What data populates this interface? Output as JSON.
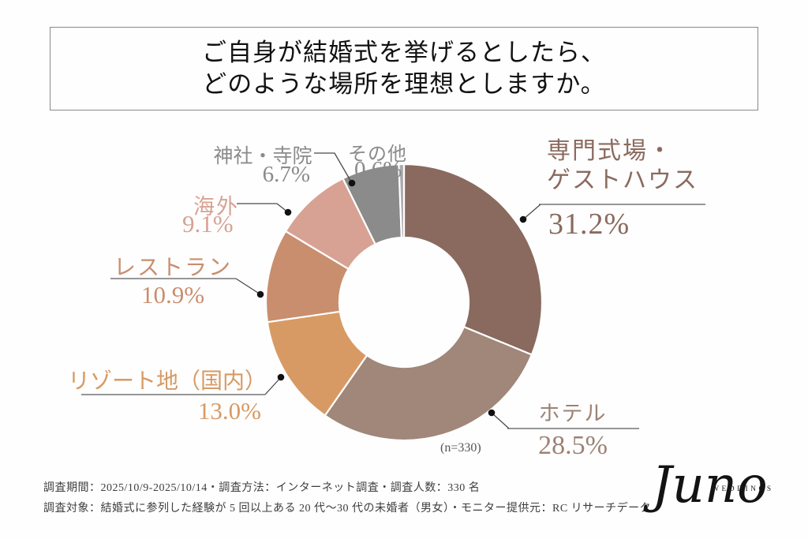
{
  "title": {
    "line1": "ご自身が結婚式を挙げるとしたら、",
    "line2": "どのような場所を理想としますか。"
  },
  "chart_data": {
    "type": "pie",
    "subtype": "donut",
    "title": "ご自身が結婚式を挙げるとしたら、どのような場所を理想としますか。",
    "sample_note": "(n=330)",
    "direction": "clockwise",
    "start_angle_deg": 0,
    "inner_radius_ratio": 0.47,
    "segments": [
      {
        "label": "専門式場・ゲストハウス",
        "label_lines": [
          "専門式場・",
          "ゲストハウス"
        ],
        "value": 31.2,
        "pct": "31.2%",
        "color": "#8A6A5E"
      },
      {
        "label": "ホテル",
        "label_lines": [
          "ホテル"
        ],
        "value": 28.5,
        "pct": "28.5%",
        "color": "#A0877A"
      },
      {
        "label": "リゾート地（国内）",
        "label_lines": [
          "リゾート地（国内）"
        ],
        "value": 13.0,
        "pct": "13.0%",
        "color": "#D89A64"
      },
      {
        "label": "レストラン",
        "label_lines": [
          "レストラン"
        ],
        "value": 10.9,
        "pct": "10.9%",
        "color": "#C98E6E"
      },
      {
        "label": "海外",
        "label_lines": [
          "海外"
        ],
        "value": 9.1,
        "pct": "9.1%",
        "color": "#D7A294"
      },
      {
        "label": "神社・寺院",
        "label_lines": [
          "神社・寺院"
        ],
        "value": 6.7,
        "pct": "6.7%",
        "color": "#8B8B8B"
      },
      {
        "label": "その他",
        "label_lines": [
          "その他"
        ],
        "value": 0.6,
        "pct": "0.6%",
        "color": "#ABABAD"
      }
    ]
  },
  "footer": {
    "line1": "調査期間：2025/10/9-2025/10/14・調査方法：インターネット調査・調査人数：330 名",
    "line2": "調査対象：結婚式に参列した経験が 5 回以上ある 20 代～30 代の未婚者（男女）・モニター提供元：RC リサーチデータ"
  },
  "logo": {
    "name": "Juno",
    "sub": "WEDDINGS"
  }
}
